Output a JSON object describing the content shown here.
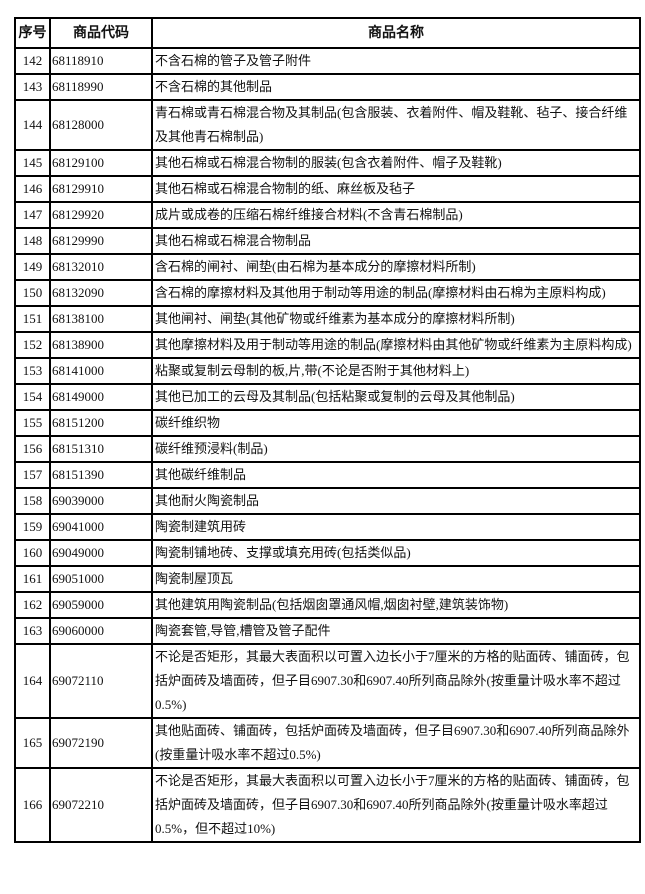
{
  "table": {
    "headers": [
      "序号",
      "商品代码",
      "商品名称"
    ],
    "rows": [
      {
        "no": "142",
        "code": "68118910",
        "name": "不含石棉的管子及管子附件"
      },
      {
        "no": "143",
        "code": "68118990",
        "name": "不含石棉的其他制品"
      },
      {
        "no": "144",
        "code": "68128000",
        "name": "青石棉或青石棉混合物及其制品(包含服装、衣着附件、帽及鞋靴、毡子、接合纤维及其他青石棉制品)"
      },
      {
        "no": "145",
        "code": "68129100",
        "name": "其他石棉或石棉混合物制的服装(包含衣着附件、帽子及鞋靴)"
      },
      {
        "no": "146",
        "code": "68129910",
        "name": "其他石棉或石棉混合物制的纸、麻丝板及毡子"
      },
      {
        "no": "147",
        "code": "68129920",
        "name": "成片或成卷的压缩石棉纤维接合材料(不含青石棉制品)"
      },
      {
        "no": "148",
        "code": "68129990",
        "name": "其他石棉或石棉混合物制品"
      },
      {
        "no": "149",
        "code": "68132010",
        "name": "含石棉的闸衬、闸垫(由石棉为基本成分的摩擦材料所制)"
      },
      {
        "no": "150",
        "code": "68132090",
        "name": "含石棉的摩擦材料及其他用于制动等用途的制品(摩擦材料由石棉为主原料构成)"
      },
      {
        "no": "151",
        "code": "68138100",
        "name": "其他闸衬、闸垫(其他矿物或纤维素为基本成分的摩擦材料所制)"
      },
      {
        "no": "152",
        "code": "68138900",
        "name": "其他摩擦材料及用于制动等用途的制品(摩擦材料由其他矿物或纤维素为主原料构成)"
      },
      {
        "no": "153",
        "code": "68141000",
        "name": "粘聚或复制云母制的板,片,带(不论是否附于其他材料上)"
      },
      {
        "no": "154",
        "code": "68149000",
        "name": "其他已加工的云母及其制品(包括粘聚或复制的云母及其他制品)"
      },
      {
        "no": "155",
        "code": "68151200",
        "name": "碳纤维织物"
      },
      {
        "no": "156",
        "code": "68151310",
        "name": "碳纤维预浸料(制品)"
      },
      {
        "no": "157",
        "code": "68151390",
        "name": "其他碳纤维制品"
      },
      {
        "no": "158",
        "code": "69039000",
        "name": "其他耐火陶瓷制品"
      },
      {
        "no": "159",
        "code": "69041000",
        "name": "陶瓷制建筑用砖"
      },
      {
        "no": "160",
        "code": "69049000",
        "name": "陶瓷制铺地砖、支撑或填充用砖(包括类似品)"
      },
      {
        "no": "161",
        "code": "69051000",
        "name": "陶瓷制屋顶瓦"
      },
      {
        "no": "162",
        "code": "69059000",
        "name": "其他建筑用陶瓷制品(包括烟囱罩通风帽,烟囱衬壁,建筑装饰物)"
      },
      {
        "no": "163",
        "code": "69060000",
        "name": "陶瓷套管,导管,槽管及管子配件"
      },
      {
        "no": "164",
        "code": "69072110",
        "name": "不论是否矩形，其最大表面积以可置入边长小于7厘米的方格的贴面砖、铺面砖，包括炉面砖及墙面砖，但子目6907.30和6907.40所列商品除外(按重量计吸水率不超过0.5%)"
      },
      {
        "no": "165",
        "code": "69072190",
        "name": "其他贴面砖、铺面砖，包括炉面砖及墙面砖，但子目6907.30和6907.40所列商品除外(按重量计吸水率不超过0.5%)"
      },
      {
        "no": "166",
        "code": "69072210",
        "name": "不论是否矩形，其最大表面积以可置入边长小于7厘米的方格的贴面砖、铺面砖，包括炉面砖及墙面砖，但子目6907.30和6907.40所列商品除外(按重量计吸水率超过0.5%，但不超过10%)"
      }
    ]
  }
}
